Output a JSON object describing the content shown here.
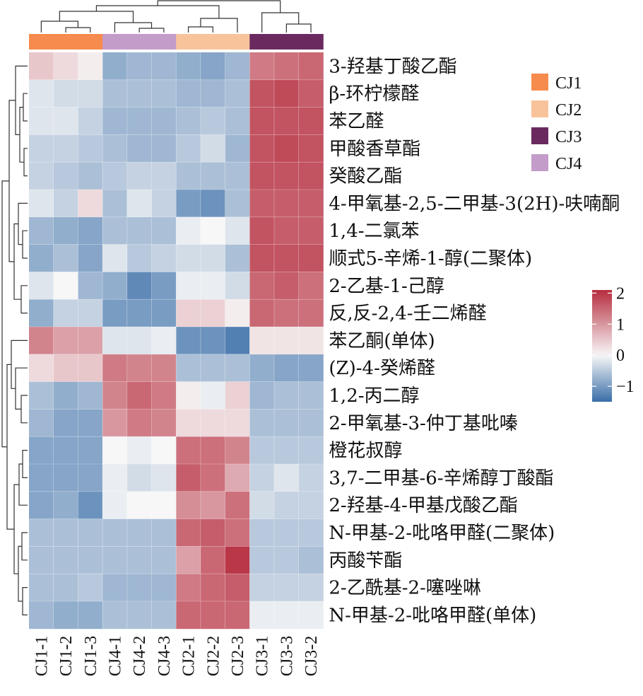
{
  "chart_data": {
    "type": "heatmap",
    "columns": [
      "CJ1-1",
      "CJ1-2",
      "CJ1-3",
      "CJ4-1",
      "CJ4-2",
      "CJ4-3",
      "CJ2-1",
      "CJ2-2",
      "CJ2-3",
      "CJ3-1",
      "CJ3-3",
      "CJ3-2"
    ],
    "column_groups": [
      "CJ1",
      "CJ1",
      "CJ1",
      "CJ4",
      "CJ4",
      "CJ4",
      "CJ2",
      "CJ2",
      "CJ2",
      "CJ3",
      "CJ3",
      "CJ3"
    ],
    "rows": [
      "3-羟基丁酸乙酯",
      "β-环柠檬醛",
      "苯乙醛",
      "甲酸香草酯",
      "癸酸乙酯",
      "4-甲氧基-2,5-二甲基-3(2H)-呋喃酮",
      "1,4-二氯苯",
      "顺式5-辛烯-1-醇(二聚体)",
      "2-乙基-1-己醇",
      "反,反-2,4-壬二烯醛",
      "苯乙酮(单体)",
      "(Z)-4-癸烯醛",
      "1,2-丙二醇",
      "2-甲氧基-3-仲丁基吡嗪",
      "橙花叔醇",
      "3,7-二甲基-6-辛烯醇丁酸酯",
      "2-羟基-4-甲基戊酸乙酯",
      "N-甲基-2-吡咯甲醛(二聚体)",
      "丙酸苄酯",
      "2-乙酰基-2-噻唑啉",
      "N-甲基-2-吡咯甲醛(单体)"
    ],
    "values": [
      [
        0.5,
        0.3,
        0.1,
        -0.8,
        -0.7,
        -0.7,
        -0.8,
        -0.9,
        -0.7,
        1.3,
        1.4,
        1.5
      ],
      [
        -0.2,
        -0.3,
        -0.3,
        -0.6,
        -0.6,
        -0.6,
        -0.7,
        -0.7,
        -0.6,
        1.7,
        1.8,
        1.6
      ],
      [
        -0.2,
        -0.2,
        -0.4,
        -0.7,
        -0.7,
        -0.7,
        -0.6,
        -0.5,
        -0.6,
        1.7,
        1.7,
        1.7
      ],
      [
        -0.4,
        -0.4,
        -0.5,
        -0.6,
        -0.7,
        -0.7,
        -0.5,
        -0.3,
        -0.7,
        1.7,
        1.8,
        1.7
      ],
      [
        -0.4,
        -0.5,
        -0.6,
        -0.5,
        -0.4,
        -0.4,
        -0.6,
        -0.6,
        -0.6,
        1.7,
        1.7,
        1.7
      ],
      [
        -0.2,
        -0.4,
        0.3,
        -0.6,
        -0.2,
        -0.4,
        -1.0,
        -1.1,
        -0.6,
        1.6,
        1.6,
        1.6
      ],
      [
        -0.7,
        -0.8,
        -0.9,
        -0.6,
        -0.6,
        -0.6,
        -0.1,
        0.0,
        -0.2,
        1.7,
        1.6,
        1.6
      ],
      [
        -0.8,
        -0.6,
        -0.9,
        -0.2,
        -0.5,
        -0.4,
        -0.3,
        -0.3,
        -0.6,
        1.7,
        1.7,
        1.7
      ],
      [
        -0.2,
        0.0,
        -0.7,
        -0.8,
        -1.2,
        -1.0,
        -0.1,
        -0.1,
        -0.3,
        1.5,
        1.6,
        1.4
      ],
      [
        -0.8,
        -0.4,
        -0.4,
        -1.0,
        -1.0,
        -1.0,
        0.4,
        0.4,
        0.1,
        1.5,
        1.4,
        1.4
      ],
      [
        1.2,
        0.9,
        0.9,
        -0.2,
        -0.2,
        -0.1,
        -1.1,
        -1.1,
        -1.3,
        0.2,
        0.2,
        0.2
      ],
      [
        0.3,
        0.5,
        0.5,
        1.3,
        1.2,
        1.2,
        -0.6,
        -0.6,
        -0.6,
        -0.8,
        -0.9,
        -0.9
      ],
      [
        -0.6,
        -0.8,
        -0.7,
        1.2,
        1.5,
        1.3,
        0.1,
        -0.1,
        0.4,
        -0.7,
        -0.6,
        -0.6
      ],
      [
        -0.7,
        -0.9,
        -0.9,
        1.0,
        1.3,
        1.2,
        0.3,
        0.3,
        0.3,
        -0.6,
        -0.6,
        -0.6
      ],
      [
        -0.9,
        -0.9,
        -0.9,
        0.0,
        -0.1,
        0.0,
        1.4,
        1.4,
        1.2,
        -0.5,
        -0.5,
        -0.5
      ],
      [
        -0.9,
        -0.9,
        -0.9,
        -0.1,
        -0.3,
        -0.2,
        1.6,
        1.4,
        0.8,
        -0.4,
        -0.2,
        -0.4
      ],
      [
        -0.9,
        -0.8,
        -1.1,
        -0.1,
        0.0,
        0.0,
        1.1,
        1.0,
        1.4,
        -0.3,
        -0.4,
        -0.4
      ],
      [
        -0.6,
        -0.6,
        -0.6,
        -0.6,
        -0.6,
        -0.6,
        1.5,
        1.6,
        1.4,
        -0.5,
        -0.5,
        -0.5
      ],
      [
        -0.6,
        -0.6,
        -0.6,
        -0.6,
        -0.6,
        -0.6,
        0.9,
        1.5,
        2.0,
        -0.5,
        -0.5,
        -0.6
      ],
      [
        -0.6,
        -0.6,
        -0.5,
        -0.7,
        -0.7,
        -0.7,
        1.3,
        1.5,
        1.6,
        -0.4,
        -0.4,
        -0.4
      ],
      [
        -0.7,
        -0.8,
        -0.8,
        -0.6,
        -0.6,
        -0.6,
        1.5,
        1.5,
        1.5,
        -0.1,
        -0.1,
        -0.1
      ]
    ],
    "colorbar": {
      "ticks": [
        2,
        1,
        0,
        -1
      ],
      "tick_labels": [
        "2",
        "1",
        "0",
        "−1"
      ],
      "range": [
        -1.5,
        2.1
      ]
    },
    "legend": {
      "position": "top-right",
      "items": [
        {
          "label": "CJ1",
          "color": "#f58b4c"
        },
        {
          "label": "CJ2",
          "color": "#f8c39b"
        },
        {
          "label": "CJ3",
          "color": "#6a2a60"
        },
        {
          "label": "CJ4",
          "color": "#c49cc9"
        }
      ]
    },
    "color_scale": {
      "low": "#3a6ea8",
      "mid": "#f7f7f7",
      "high": "#b62d3e"
    },
    "row_dendrogram": true,
    "column_dendrogram": true
  }
}
